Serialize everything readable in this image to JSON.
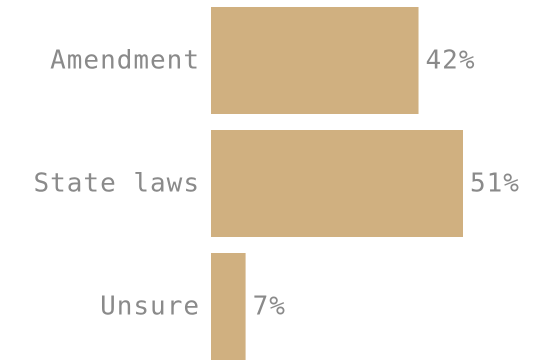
{
  "chart_data": {
    "type": "bar",
    "orientation": "horizontal",
    "categories": [
      "Amendment",
      "State laws",
      "Unsure"
    ],
    "values": [
      42,
      51,
      7
    ],
    "value_labels": [
      "42%",
      "51%",
      "7%"
    ],
    "unit": "%",
    "title": "",
    "xlabel": "",
    "ylabel": "",
    "xlim": [
      0,
      51
    ],
    "grid": false,
    "legend": "none",
    "bar_color": "#d0b080",
    "text_color": "#8a8a8a"
  }
}
